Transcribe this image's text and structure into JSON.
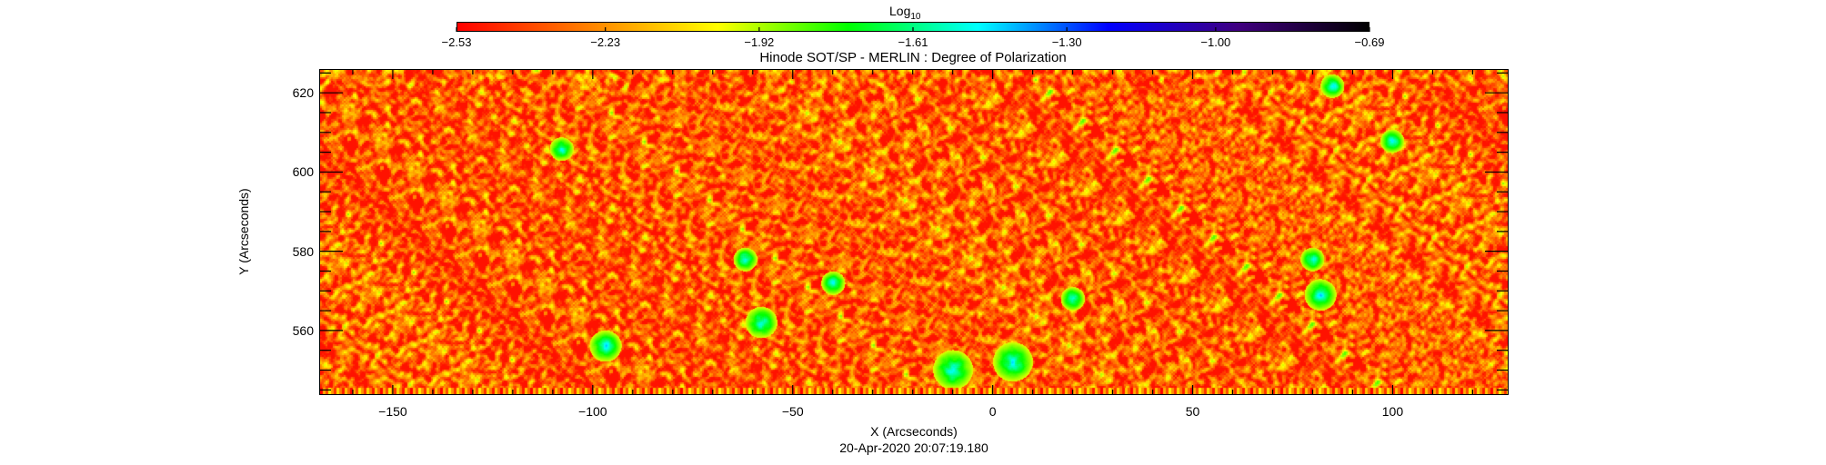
{
  "chart_data": {
    "type": "heatmap",
    "title": "Hinode SOT/SP - MERLIN : Degree of Polarization",
    "xlabel": "X (Arcseconds)",
    "ylabel": "Y (Arcseconds)",
    "footer": "20-Apr-2020 20:07:19.180",
    "xlim": [
      -168.4,
      129
    ],
    "ylim": [
      543.7,
      626
    ],
    "x_ticks": [
      -150,
      -100,
      -50,
      0,
      50,
      100
    ],
    "x_tick_labels": [
      "−150",
      "−100",
      "−50",
      "0",
      "50",
      "100"
    ],
    "y_ticks": [
      560,
      580,
      600,
      620
    ],
    "y_tick_labels": [
      "560",
      "580",
      "600",
      "620"
    ],
    "colorbar": {
      "label_base": "Log",
      "label_sub": "10",
      "range": [
        -2.53,
        -0.69
      ],
      "tick_values": [
        -2.53,
        -2.23,
        -1.92,
        -1.61,
        -1.3,
        -1.0,
        -0.69
      ],
      "tick_labels": [
        "−2.53",
        "−2.23",
        "−1.92",
        "−1.61",
        "−1.30",
        "−1.00",
        "−0.69"
      ],
      "colors": [
        "#ff0000",
        "#ff8000",
        "#ffff00",
        "#00ff00",
        "#00ffff",
        "#0000ff",
        "#400080",
        "#000000"
      ]
    },
    "grid": false
  }
}
